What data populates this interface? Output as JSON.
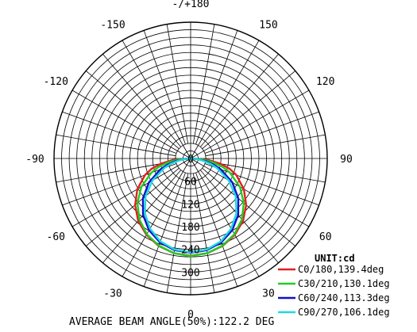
{
  "chart_data": {
    "type": "polar",
    "title": "",
    "unit_label": "UNIT:cd",
    "footer": "AVERAGE BEAM ANGLE(50%):122.2 DEG",
    "radial_ticks": [
      0,
      60,
      120,
      180,
      240,
      300
    ],
    "radial_max": 360,
    "angle_labels": [
      {
        "angle": 0,
        "text": "0"
      },
      {
        "angle": 30,
        "text": "30"
      },
      {
        "angle": -30,
        "text": "-30"
      },
      {
        "angle": 60,
        "text": "60"
      },
      {
        "angle": -60,
        "text": "-60"
      },
      {
        "angle": 90,
        "text": "90"
      },
      {
        "angle": -90,
        "text": "-90"
      },
      {
        "angle": 120,
        "text": "120"
      },
      {
        "angle": -120,
        "text": "-120"
      },
      {
        "angle": 150,
        "text": "150"
      },
      {
        "angle": -150,
        "text": "-150"
      },
      {
        "angle": 180,
        "text": "-/+180"
      }
    ],
    "grid": true,
    "legend_position": "bottom-right",
    "series": [
      {
        "name": "C0/180,139.4deg",
        "color": "#e02020",
        "angles": [
          0,
          10,
          20,
          30,
          40,
          50,
          60,
          70,
          75,
          80,
          85,
          90
        ],
        "values": [
          257,
          254,
          246,
          233,
          215,
          191,
          162,
          128,
          107,
          80,
          48,
          0
        ]
      },
      {
        "name": "C30/210,130.1deg",
        "color": "#22cc22",
        "angles": [
          0,
          10,
          20,
          30,
          40,
          50,
          60,
          70,
          75,
          80,
          85,
          90
        ],
        "values": [
          258,
          254,
          245,
          231,
          210,
          183,
          150,
          110,
          88,
          62,
          32,
          0
        ]
      },
      {
        "name": "C60/240,113.3deg",
        "color": "#1010c8",
        "angles": [
          0,
          10,
          20,
          30,
          40,
          50,
          60,
          70,
          75,
          80,
          85,
          90
        ],
        "values": [
          249,
          246,
          236,
          219,
          195,
          164,
          127,
          85,
          63,
          40,
          18,
          0
        ]
      },
      {
        "name": "C90/270,106.1deg",
        "color": "#20d8e0",
        "angles": [
          0,
          10,
          20,
          30,
          40,
          50,
          60,
          70,
          75,
          80,
          85,
          90
        ],
        "values": [
          248,
          244,
          233,
          214,
          188,
          155,
          116,
          74,
          53,
          32,
          14,
          0
        ]
      }
    ]
  }
}
